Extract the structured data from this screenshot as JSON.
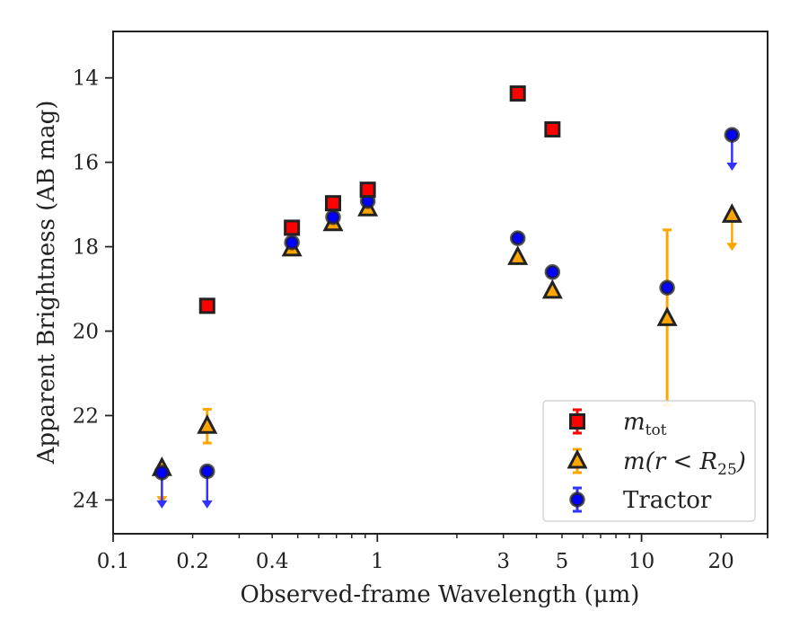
{
  "chart_data": {
    "type": "scatter",
    "xlabel": "Observed-frame Wavelength (μm)",
    "ylabel": "Apparent Brightness (AB mag)",
    "xscale": "log",
    "xlim": [
      0.1,
      30
    ],
    "ylim": [
      24.8,
      12.9
    ],
    "y_inverted": true,
    "x_ticks": [
      {
        "value": 0.1,
        "label": "0.1"
      },
      {
        "value": 0.2,
        "label": "0.2"
      },
      {
        "value": 0.4,
        "label": "0.4"
      },
      {
        "value": 1,
        "label": "1"
      },
      {
        "value": 3,
        "label": "3"
      },
      {
        "value": 5,
        "label": "5"
      },
      {
        "value": 10,
        "label": "10"
      },
      {
        "value": 20,
        "label": "20"
      }
    ],
    "y_ticks": [
      {
        "value": 14,
        "label": "14"
      },
      {
        "value": 16,
        "label": "16"
      },
      {
        "value": 18,
        "label": "18"
      },
      {
        "value": 20,
        "label": "20"
      },
      {
        "value": 22,
        "label": "22"
      },
      {
        "value": 24,
        "label": "24"
      }
    ],
    "grid": false,
    "legend_position": "lower-right",
    "series": [
      {
        "name": "m_tot",
        "legend_main": "m",
        "legend_sub": "tot",
        "marker": "square",
        "color": "#ff0000",
        "edge_color": "#222222",
        "errorbar_color": "#ff0000",
        "points": [
          {
            "x": 0.227,
            "y": 19.4
          },
          {
            "x": 0.475,
            "y": 17.55
          },
          {
            "x": 0.68,
            "y": 16.97
          },
          {
            "x": 0.92,
            "y": 16.65
          },
          {
            "x": 3.4,
            "y": 14.37
          },
          {
            "x": 4.6,
            "y": 15.22
          }
        ]
      },
      {
        "name": "m(r < R_25)",
        "legend_main": "m(r < R",
        "legend_sub": "25",
        "legend_tail": ")",
        "marker": "triangle",
        "color": "#ffa500",
        "edge_color": "#222222",
        "errorbar_color": "#ffa500",
        "points": [
          {
            "x": 0.153,
            "y": 23.25,
            "upper_limit": true,
            "arrow_to": 24.1
          },
          {
            "x": 0.227,
            "y": 22.25,
            "yerr": [
              21.85,
              22.65
            ]
          },
          {
            "x": 0.475,
            "y": 18.05
          },
          {
            "x": 0.68,
            "y": 17.45
          },
          {
            "x": 0.92,
            "y": 17.1
          },
          {
            "x": 3.4,
            "y": 18.25
          },
          {
            "x": 4.6,
            "y": 19.05
          },
          {
            "x": 12.5,
            "y": 19.7,
            "yerr": [
              17.6,
              21.75
            ]
          },
          {
            "x": 22.0,
            "y": 17.25,
            "upper_limit": true,
            "arrow_to": 18.1
          }
        ]
      },
      {
        "name": "Tractor",
        "legend_main": "Tractor",
        "marker": "circle",
        "color": "#0000ff",
        "edge_color": "#222222",
        "errorbar_color": "#3333ff",
        "points": [
          {
            "x": 0.153,
            "y": 23.35,
            "upper_limit": true,
            "arrow_to": 24.2
          },
          {
            "x": 0.227,
            "y": 23.32,
            "upper_limit": true,
            "arrow_to": 24.2
          },
          {
            "x": 0.475,
            "y": 17.9
          },
          {
            "x": 0.68,
            "y": 17.3
          },
          {
            "x": 0.92,
            "y": 16.92
          },
          {
            "x": 3.4,
            "y": 17.8
          },
          {
            "x": 4.6,
            "y": 18.6
          },
          {
            "x": 12.5,
            "y": 18.97
          },
          {
            "x": 22.0,
            "y": 15.35,
            "upper_limit": true,
            "arrow_to": 16.2
          }
        ]
      }
    ]
  }
}
